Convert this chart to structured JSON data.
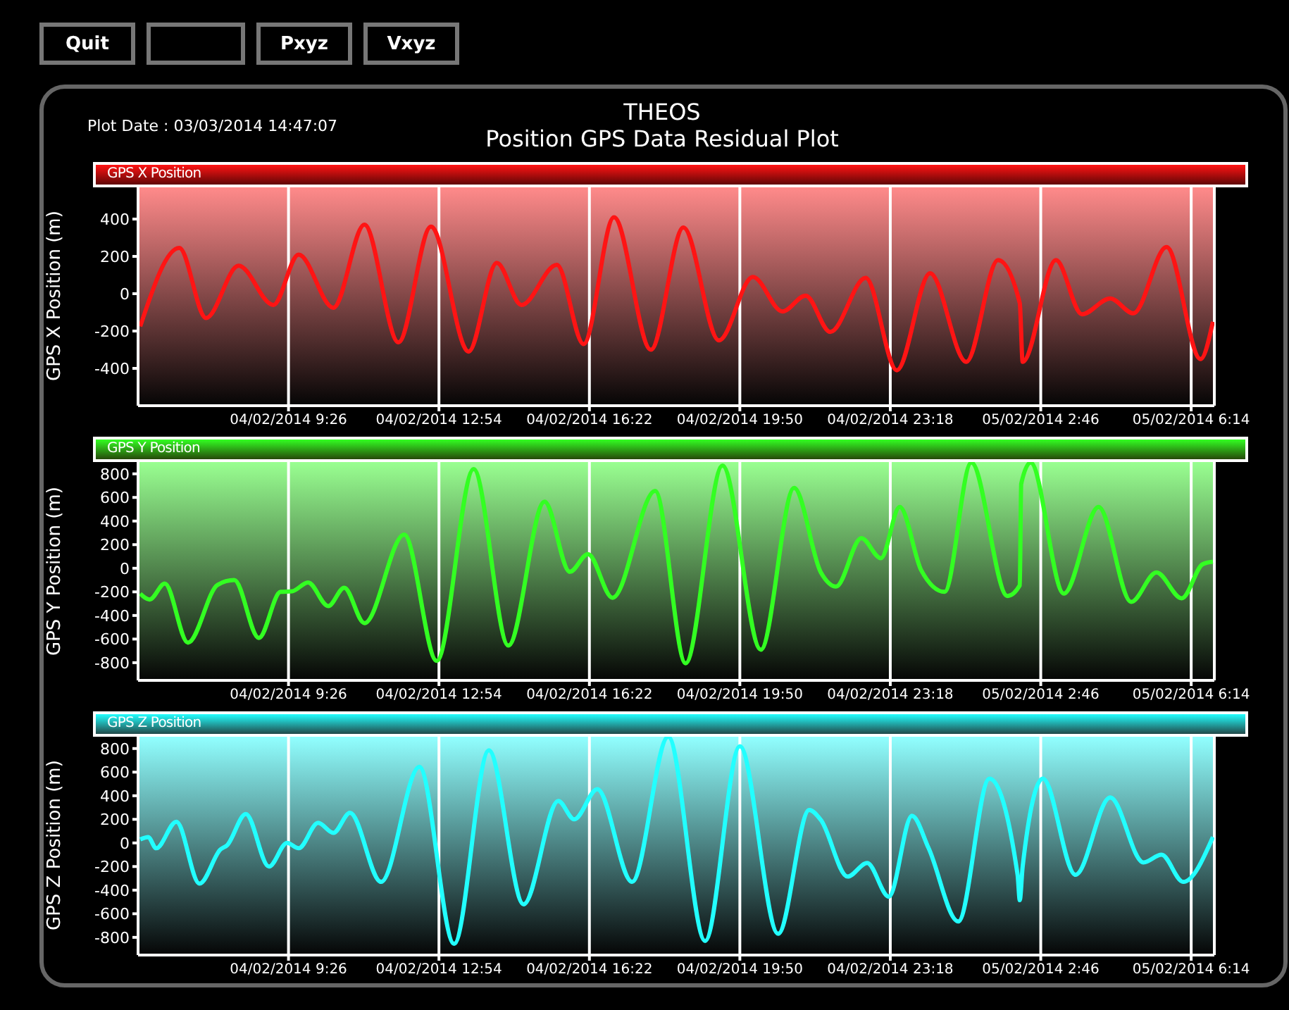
{
  "chart_data": [
    {
      "type": "line",
      "title": "THEOS",
      "subtitle": "Position GPS Data Residual Plot",
      "annotations": [
        "Quit",
        "Pxyz",
        "Vxyz",
        "Plot Date : 03/03/2014 14:47:07"
      ],
      "ylabel": "GPS X Position (m)",
      "legend": "top",
      "grid": "x",
      "marker": "none",
      "line_style": "solid",
      "tick_labels": "xy",
      "xlim": [
        "2014-02-04T05:58",
        "2014-02-05T06:46"
      ],
      "xticks": [
        {
          "value": "2014-02-04T09:26",
          "label": "04/02/2014 9:26"
        },
        {
          "value": "2014-02-04T12:54",
          "label": "04/02/2014 12:54"
        },
        {
          "value": "2014-02-04T16:22",
          "label": "04/02/2014 16:22"
        },
        {
          "value": "2014-02-04T19:50",
          "label": "04/02/2014 19:50"
        },
        {
          "value": "2014-02-04T23:18",
          "label": "04/02/2014 23:18"
        },
        {
          "value": "2014-02-05T02:46",
          "label": "05/02/2014 2:46"
        },
        {
          "value": "2014-02-05T06:14",
          "label": "05/02/2014 6:14"
        }
      ],
      "ylim": [
        -600,
        570
      ],
      "yticks": [
        -400,
        -200,
        0,
        200,
        400
      ],
      "series": [
        {
          "name": "GPS X Position",
          "color": "#ff1414",
          "x": [
            "2014-02-04T06:01",
            "2014-02-04T06:55",
            "2014-02-04T07:32",
            "2014-02-04T08:17",
            "2014-02-04T09:05",
            "2014-02-04T09:40",
            "2014-02-04T10:28",
            "2014-02-04T11:11",
            "2014-02-04T11:58",
            "2014-02-04T12:43",
            "2014-02-04T13:35",
            "2014-02-04T14:14",
            "2014-02-04T14:48",
            "2014-02-04T15:37",
            "2014-02-04T16:14",
            "2014-02-04T16:56",
            "2014-02-04T17:47",
            "2014-02-04T18:32",
            "2014-02-04T19:21",
            "2014-02-04T20:08",
            "2014-02-04T20:49",
            "2014-02-04T21:21",
            "2014-02-04T21:55",
            "2014-02-04T22:44",
            "2014-02-04T23:27",
            "2014-02-05T00:13",
            "2014-02-05T01:03",
            "2014-02-05T01:47",
            "2014-02-05T02:17",
            "2014-02-05T02:21",
            "2014-02-05T03:07",
            "2014-02-05T03:43",
            "2014-02-05T04:22",
            "2014-02-05T04:54",
            "2014-02-05T05:40",
            "2014-02-05T06:27",
            "2014-02-05T06:44"
          ],
          "values": [
            -175,
            245,
            -130,
            150,
            -60,
            210,
            -75,
            370,
            -260,
            360,
            -310,
            165,
            -60,
            155,
            -270,
            410,
            -300,
            355,
            -250,
            90,
            -95,
            -10,
            -205,
            85,
            -410,
            110,
            -365,
            180,
            -50,
            -365,
            180,
            -110,
            -25,
            -105,
            250,
            -350,
            -150
          ]
        }
      ]
    },
    {
      "type": "line",
      "ylabel": "GPS Y Position (m)",
      "legend": "top",
      "grid": "x",
      "marker": "none",
      "line_style": "solid",
      "tick_labels": "xy",
      "xlim": [
        "2014-02-04T05:58",
        "2014-02-05T06:46"
      ],
      "xticks": [
        {
          "value": "2014-02-04T09:26",
          "label": "04/02/2014 9:26"
        },
        {
          "value": "2014-02-04T12:54",
          "label": "04/02/2014 12:54"
        },
        {
          "value": "2014-02-04T16:22",
          "label": "04/02/2014 16:22"
        },
        {
          "value": "2014-02-04T19:50",
          "label": "04/02/2014 19:50"
        },
        {
          "value": "2014-02-04T23:18",
          "label": "04/02/2014 23:18"
        },
        {
          "value": "2014-02-05T02:46",
          "label": "05/02/2014 2:46"
        },
        {
          "value": "2014-02-05T06:14",
          "label": "05/02/2014 6:14"
        }
      ],
      "ylim": [
        -950,
        900
      ],
      "yticks": [
        -800,
        -600,
        -400,
        -200,
        0,
        200,
        400,
        600,
        800
      ],
      "series": [
        {
          "name": "GPS Y Position",
          "color": "#33ff22",
          "x": [
            "2014-02-04T06:01",
            "2014-02-04T06:14",
            "2014-02-04T06:35",
            "2014-02-04T07:07",
            "2014-02-04T07:48",
            "2014-02-04T08:11",
            "2014-02-04T08:45",
            "2014-02-04T09:15",
            "2014-02-04T09:31",
            "2014-02-04T09:53",
            "2014-02-04T10:21",
            "2014-02-04T10:43",
            "2014-02-04T11:11",
            "2014-02-04T12:06",
            "2014-02-04T12:51",
            "2014-02-04T13:42",
            "2014-02-04T14:30",
            "2014-02-04T15:20",
            "2014-02-04T15:55",
            "2014-02-04T16:20",
            "2014-02-04T16:54",
            "2014-02-04T17:53",
            "2014-02-04T18:35",
            "2014-02-04T19:26",
            "2014-02-04T20:19",
            "2014-02-04T21:05",
            "2014-02-04T21:42",
            "2014-02-04T22:03",
            "2014-02-04T22:38",
            "2014-02-04T23:05",
            "2014-02-04T23:31",
            "2014-02-05T00:01",
            "2014-02-05T00:33",
            "2014-02-05T01:10",
            "2014-02-05T02:00",
            "2014-02-05T02:17",
            "2014-02-05T02:19",
            "2014-02-05T02:32",
            "2014-02-05T03:18",
            "2014-02-05T04:06",
            "2014-02-05T04:51",
            "2014-02-05T05:26",
            "2014-02-05T06:01",
            "2014-02-05T06:30",
            "2014-02-05T06:44"
          ],
          "values": [
            -215,
            -265,
            -130,
            -630,
            -140,
            -100,
            -590,
            -200,
            -195,
            -120,
            -320,
            -165,
            -465,
            285,
            -785,
            840,
            -655,
            565,
            -30,
            120,
            -250,
            655,
            -805,
            870,
            -690,
            680,
            -35,
            -155,
            255,
            85,
            520,
            -20,
            -200,
            895,
            -235,
            -145,
            715,
            895,
            -215,
            520,
            -285,
            -35,
            -255,
            35,
            55
          ]
        }
      ]
    },
    {
      "type": "line",
      "ylabel": "GPS Z Position (m)",
      "legend": "top",
      "grid": "x",
      "marker": "none",
      "line_style": "solid",
      "tick_labels": "xy",
      "xlim": [
        "2014-02-04T05:58",
        "2014-02-05T06:46"
      ],
      "xticks": [
        {
          "value": "2014-02-04T09:26",
          "label": "04/02/2014 9:26"
        },
        {
          "value": "2014-02-04T12:54",
          "label": "04/02/2014 12:54"
        },
        {
          "value": "2014-02-04T16:22",
          "label": "04/02/2014 16:22"
        },
        {
          "value": "2014-02-04T19:50",
          "label": "04/02/2014 19:50"
        },
        {
          "value": "2014-02-04T23:18",
          "label": "04/02/2014 23:18"
        },
        {
          "value": "2014-02-05T02:46",
          "label": "05/02/2014 2:46"
        },
        {
          "value": "2014-02-05T06:14",
          "label": "05/02/2014 6:14"
        }
      ],
      "ylim": [
        -950,
        900
      ],
      "yticks": [
        -800,
        -600,
        -400,
        -200,
        0,
        200,
        400,
        600,
        800
      ],
      "series": [
        {
          "name": "GPS Z Position",
          "color": "#22ffff",
          "x": [
            "2014-02-04T06:01",
            "2014-02-04T06:12",
            "2014-02-04T06:23",
            "2014-02-04T06:51",
            "2014-02-04T07:23",
            "2014-02-04T07:52",
            "2014-02-04T08:01",
            "2014-02-04T08:27",
            "2014-02-04T08:59",
            "2014-02-04T09:24",
            "2014-02-04T09:40",
            "2014-02-04T10:07",
            "2014-02-04T10:28",
            "2014-02-04T10:51",
            "2014-02-04T11:34",
            "2014-02-04T12:27",
            "2014-02-04T13:15",
            "2014-02-04T14:03",
            "2014-02-04T14:51",
            "2014-02-04T15:39",
            "2014-02-04T16:01",
            "2014-02-04T16:33",
            "2014-02-04T17:21",
            "2014-02-04T18:11",
            "2014-02-04T19:02",
            "2014-02-04T19:50",
            "2014-02-04T20:43",
            "2014-02-04T21:26",
            "2014-02-04T21:42",
            "2014-02-04T22:19",
            "2014-02-04T22:46",
            "2014-02-04T23:16",
            "2014-02-04T23:48",
            "2014-02-05T00:11",
            "2014-02-05T00:52",
            "2014-02-05T01:35",
            "2014-02-05T02:14",
            "2014-02-05T02:17",
            "2014-02-05T02:21",
            "2014-02-05T02:49",
            "2014-02-05T03:34",
            "2014-02-05T04:22",
            "2014-02-05T05:08",
            "2014-02-05T05:33",
            "2014-02-05T06:03",
            "2014-02-05T06:44"
          ],
          "values": [
            30,
            50,
            -45,
            180,
            -345,
            -55,
            -20,
            245,
            -200,
            0,
            -45,
            170,
            85,
            255,
            -330,
            645,
            -855,
            785,
            -520,
            355,
            200,
            455,
            -330,
            900,
            -830,
            820,
            -770,
            280,
            195,
            -285,
            -170,
            -455,
            230,
            -45,
            -665,
            545,
            -270,
            -485,
            -200,
            545,
            -270,
            385,
            -165,
            -100,
            -330,
            50
          ]
        }
      ]
    }
  ]
}
